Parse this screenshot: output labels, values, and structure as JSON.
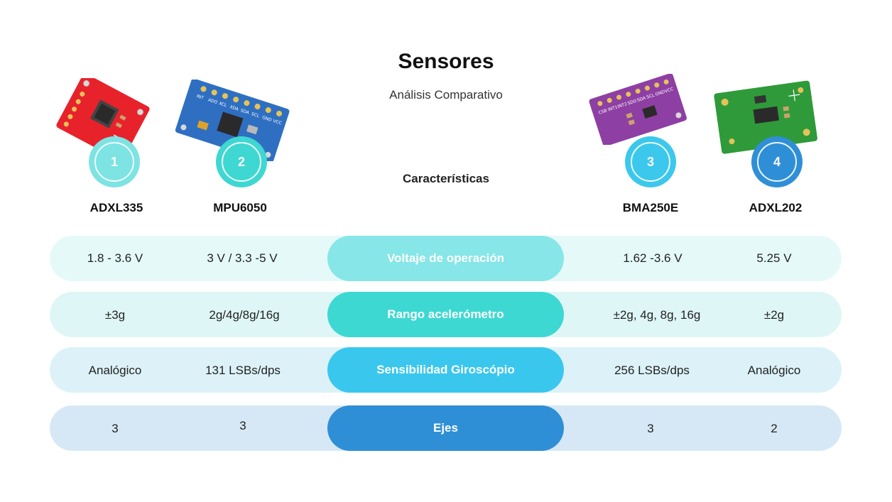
{
  "header": {
    "title": "Sensores",
    "subtitle": "Análisis Comparativo",
    "characteristics_label": "Características"
  },
  "sensors": [
    {
      "number": "1",
      "name": "ADXL335",
      "board_color": "#e8222b",
      "badge_color": "#7de3e3"
    },
    {
      "number": "2",
      "name": "MPU6050",
      "board_color": "#2f6fc2",
      "badge_color": "#3fd7d1"
    },
    {
      "number": "3",
      "name": "BMA250E",
      "board_color": "#8e3fa3",
      "badge_color": "#3cc8ec"
    },
    {
      "number": "4",
      "name": "ADXL202",
      "board_color": "#2f9a3a",
      "badge_color": "#2f8fd6"
    }
  ],
  "board_labels": {
    "mpu": [
      "INT",
      "ADO",
      "XCL",
      "XDA",
      "SDA",
      "SCL",
      "GND",
      "VCC"
    ],
    "bma": [
      "CSB",
      "INT1",
      "INT2",
      "SDO",
      "SDA",
      "SCL",
      "GND",
      "VCC"
    ]
  },
  "rows": [
    {
      "label": "Voltaje de operación",
      "values": [
        "1.8 - 3.6 V",
        "3 V / 3.3 -5 V",
        "1.62 -3.6 V",
        "5.25 V"
      ],
      "row_color": "#e5f9f9",
      "pill_color": "#86e6e8"
    },
    {
      "label": "Rango acelerómetro",
      "values": [
        "±3g",
        "2g/4g/8g/16g",
        "±2g, 4g, 8g, 16g",
        "±2g"
      ],
      "row_color": "#dff6f6",
      "pill_color": "#3ed8d3"
    },
    {
      "label": "Sensibilidad Giroscópio",
      "values": [
        "Analógico",
        "131 LSBs/dps",
        "256 LSBs/dps",
        "Analógico"
      ],
      "row_color": "#dcf2f8",
      "pill_color": "#3ac7ee"
    },
    {
      "label": "Ejes",
      "values": [
        "3",
        "3",
        "3",
        "2"
      ],
      "row_color": "#d6e8f6",
      "pill_color": "#2f8fd6"
    }
  ]
}
